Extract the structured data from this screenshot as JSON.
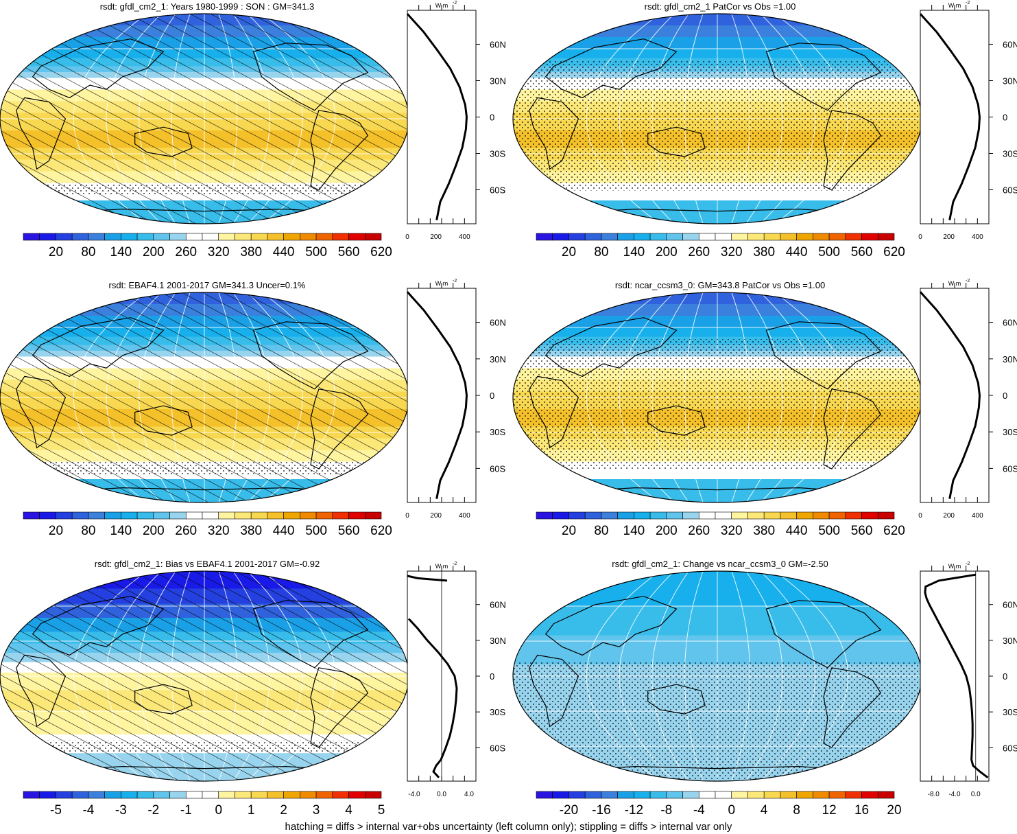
{
  "colors": {
    "bands": [
      "#2a14e2",
      "#1a1ae8",
      "#2440e0",
      "#2f62dc",
      "#3a80dc",
      "#1aa0e6",
      "#18b0ec",
      "#38bcea",
      "#60c4ec",
      "#98d4ee",
      "#ffffff",
      "#ffffff",
      "#fff5a0",
      "#fbe878",
      "#f8d850",
      "#f5c12a",
      "#f0a600",
      "#f08a00",
      "#f06400",
      "#f03000",
      "#e00000",
      "#c80000"
    ],
    "land": "#000000",
    "profile": "#000000"
  },
  "footer": "hatching = diffs > internal var+obs uncertainty (left column only); stippling = diffs > internal var only",
  "chart_data": [
    {
      "id": "p1",
      "type": "heatmap",
      "title": "rsdt: gfdl_cm2_1: Years 1980-1999 : SON : GM=341.3",
      "field": "mean",
      "pattern": "hatch",
      "units": "W m⁻²",
      "colorbar": {
        "ticks": [
          "20",
          "80",
          "140",
          "200",
          "260",
          "320",
          "380",
          "440",
          "500",
          "560",
          "620"
        ]
      },
      "profile": {
        "xlim": [
          0,
          480
        ],
        "xticks": [
          "0",
          "200",
          "400"
        ],
        "zero_line": false,
        "lat": [
          85,
          70,
          55,
          40,
          25,
          10,
          0,
          -10,
          -25,
          -40,
          -55,
          -70,
          -85
        ],
        "values": [
          0,
          115,
          210,
          300,
          365,
          405,
          415,
          410,
          385,
          340,
          290,
          230,
          205
        ]
      }
    },
    {
      "id": "p2",
      "type": "heatmap",
      "title": "rsdt: gfdl_cm2_1 PatCor vs Obs =1.00",
      "field": "mean",
      "pattern": "stipple",
      "units": "W m⁻²",
      "colorbar": {
        "ticks": [
          "20",
          "80",
          "140",
          "200",
          "260",
          "320",
          "380",
          "440",
          "500",
          "560",
          "620"
        ]
      },
      "profile": {
        "xlim": [
          0,
          480
        ],
        "xticks": [
          "0",
          "200",
          "400"
        ],
        "zero_line": false,
        "lat": [
          85,
          70,
          55,
          40,
          25,
          10,
          0,
          -10,
          -25,
          -40,
          -55,
          -70,
          -85
        ],
        "values": [
          0,
          115,
          210,
          300,
          365,
          405,
          415,
          410,
          385,
          340,
          290,
          230,
          205
        ]
      }
    },
    {
      "id": "p3",
      "type": "heatmap",
      "title": "rsdt: EBAF4.1 2001-2017 GM=341.3 Uncer=0.1%",
      "field": "mean",
      "pattern": "hatch",
      "units": "W m⁻²",
      "colorbar": {
        "ticks": [
          "20",
          "80",
          "140",
          "200",
          "260",
          "320",
          "380",
          "440",
          "500",
          "560",
          "620"
        ]
      },
      "profile": {
        "xlim": [
          0,
          480
        ],
        "xticks": [
          "0",
          "200",
          "400"
        ],
        "zero_line": false,
        "lat": [
          85,
          70,
          55,
          40,
          25,
          10,
          0,
          -10,
          -25,
          -40,
          -55,
          -70,
          -85
        ],
        "values": [
          0,
          115,
          210,
          300,
          365,
          405,
          415,
          410,
          385,
          340,
          290,
          230,
          205
        ]
      }
    },
    {
      "id": "p4",
      "type": "heatmap",
      "title": "rsdt: ncar_ccsm3_0: GM=343.8 PatCor vs Obs =1.00",
      "field": "mean",
      "pattern": "stipple",
      "units": "W m⁻²",
      "colorbar": {
        "ticks": [
          "20",
          "80",
          "140",
          "200",
          "260",
          "320",
          "380",
          "440",
          "500",
          "560",
          "620"
        ]
      },
      "profile": {
        "xlim": [
          0,
          480
        ],
        "xticks": [
          "0",
          "200",
          "400"
        ],
        "zero_line": false,
        "lat": [
          85,
          70,
          55,
          40,
          25,
          10,
          0,
          -10,
          -25,
          -40,
          -55,
          -70,
          -85
        ],
        "values": [
          0,
          115,
          210,
          300,
          365,
          405,
          415,
          410,
          385,
          340,
          290,
          230,
          205
        ]
      }
    },
    {
      "id": "p5",
      "type": "heatmap",
      "title": "rsdt: gfdl_cm2_1: Bias vs EBAF4.1 2001-2017  GM=-0.92",
      "field": "bias",
      "pattern": "hatch",
      "units": "W m⁻²",
      "colorbar": {
        "ticks": [
          "-5",
          "-4",
          "-3",
          "-2",
          "-1",
          "0",
          "1",
          "2",
          "3",
          "4",
          "5"
        ]
      },
      "profile": {
        "xlim": [
          -5,
          5
        ],
        "xticks": [
          "-4.0",
          "0.0",
          "4.0"
        ],
        "zero_line": true,
        "lat": [
          84,
          82,
          80,
          48,
          40,
          30,
          20,
          10,
          0,
          -10,
          -20,
          -30,
          -40,
          -50,
          -60,
          -70,
          -75,
          -80,
          -85
        ],
        "values": [
          -5,
          -3.5,
          0.8,
          -4.8,
          -3.5,
          -2.1,
          -0.5,
          0.9,
          1.9,
          2.2,
          2.1,
          1.9,
          1.6,
          1.2,
          0.6,
          -0.1,
          -0.8,
          -1.2,
          -0.4
        ]
      }
    },
    {
      "id": "p6",
      "type": "heatmap",
      "title": "rsdt: gfdl_cm2_1: Change vs ncar_ccsm3_0 GM=-2.50",
      "field": "change",
      "pattern": "stipple",
      "units": "W m⁻²",
      "colorbar": {
        "ticks": [
          "-20",
          "-16",
          "-12",
          "-8",
          "-4",
          "0",
          "4",
          "8",
          "12",
          "16",
          "20"
        ]
      },
      "profile": {
        "xlim": [
          -10.5,
          2.5
        ],
        "xticks": [
          "-8.0",
          "-4.0",
          "0.0"
        ],
        "zero_line": true,
        "lat": [
          85,
          80,
          75,
          70,
          65,
          60,
          55,
          50,
          45,
          40,
          35,
          30,
          25,
          20,
          15,
          10,
          5,
          0,
          -10,
          -20,
          -30,
          -40,
          -50,
          -60,
          -70,
          -75,
          -80,
          -85
        ],
        "values": [
          0,
          -7,
          -9.5,
          -9.6,
          -9.3,
          -8.8,
          -8.2,
          -7.6,
          -7.0,
          -6.4,
          -5.8,
          -5.2,
          -4.6,
          -4.0,
          -3.4,
          -2.8,
          -2.3,
          -1.8,
          -1.2,
          -0.9,
          -0.7,
          -0.6,
          -0.6,
          -0.7,
          -0.8,
          -0.5,
          0.8,
          2.3
        ]
      }
    }
  ],
  "profile_unit": "W m",
  "profile_unit_sup": "-2",
  "lat_ticks": [
    "60N",
    "30N",
    "0",
    "30S",
    "60S"
  ]
}
